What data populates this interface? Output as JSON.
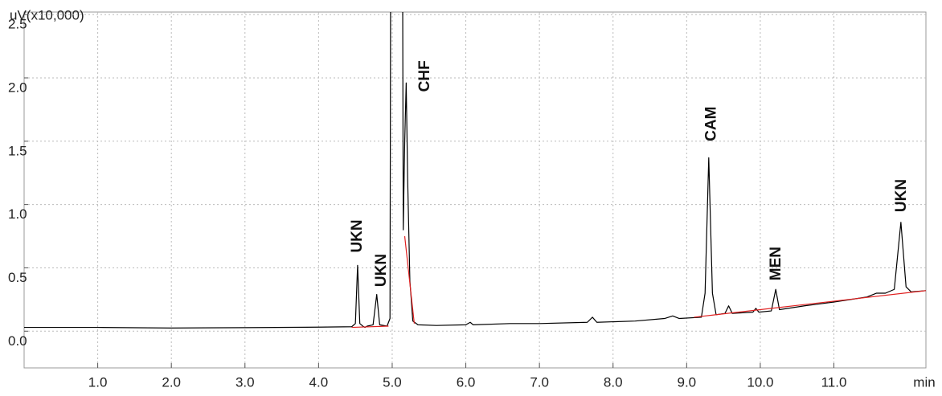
{
  "chart_data": {
    "type": "line",
    "y_label": "uV(x10,000)",
    "x_label": "min",
    "xlim": [
      0,
      12.25
    ],
    "ylim": [
      -0.29,
      2.52
    ],
    "xticks": [
      {
        "value": 1,
        "label": "1.0"
      },
      {
        "value": 2,
        "label": "2.0"
      },
      {
        "value": 3,
        "label": "3.0"
      },
      {
        "value": 4,
        "label": "4.0"
      },
      {
        "value": 5,
        "label": "5.0"
      },
      {
        "value": 6,
        "label": "6.0"
      },
      {
        "value": 7,
        "label": "7.0"
      },
      {
        "value": 8,
        "label": "8.0"
      },
      {
        "value": 9,
        "label": "9.0"
      },
      {
        "value": 10,
        "label": "10.0"
      },
      {
        "value": 11,
        "label": "11.0"
      }
    ],
    "yticks": [
      {
        "value": 0,
        "label": "0.0"
      },
      {
        "value": 0.5,
        "label": "0.5"
      },
      {
        "value": 1,
        "label": "1.0"
      },
      {
        "value": 1.5,
        "label": "1.5"
      },
      {
        "value": 2,
        "label": "2.0"
      },
      {
        "value": 2.5,
        "label": "2.5"
      }
    ],
    "grid": true,
    "series": [
      {
        "color": "#000000",
        "x": [
          0,
          1,
          2,
          3,
          4,
          4.45,
          4.5,
          4.53,
          4.56,
          4.6,
          4.63,
          4.66,
          4.74,
          4.79,
          4.83,
          4.93,
          4.97,
          4.98,
          5.14,
          5.15,
          5.17,
          5.19,
          5.21,
          5.24,
          5.28,
          5.35,
          5.6,
          6.0,
          6.06,
          6.1,
          6.6,
          7.0,
          7.65,
          7.72,
          7.78,
          8.3,
          8.7,
          8.81,
          8.9,
          9.2,
          9.25,
          9.3,
          9.35,
          9.4,
          9.52,
          9.57,
          9.62,
          9.9,
          9.94,
          9.98,
          10.15,
          10.21,
          10.26,
          10.6,
          11.0,
          11.45,
          11.58,
          11.7,
          11.82,
          11.91,
          11.98,
          12.05,
          12.25
        ],
        "values": [
          0.03,
          0.03,
          0.025,
          0.028,
          0.032,
          0.035,
          0.06,
          0.52,
          0.06,
          0.04,
          0.03,
          0.04,
          0.05,
          0.29,
          0.05,
          0.04,
          0.1,
          3.2,
          3.2,
          0.8,
          1.5,
          1.96,
          1.2,
          0.4,
          0.08,
          0.05,
          0.045,
          0.05,
          0.07,
          0.05,
          0.06,
          0.06,
          0.07,
          0.11,
          0.07,
          0.08,
          0.1,
          0.12,
          0.1,
          0.11,
          0.3,
          1.37,
          0.3,
          0.13,
          0.14,
          0.2,
          0.14,
          0.15,
          0.18,
          0.15,
          0.16,
          0.33,
          0.17,
          0.2,
          0.23,
          0.27,
          0.3,
          0.3,
          0.33,
          0.86,
          0.35,
          0.31,
          0.32
        ]
      },
      {
        "color": "#e02020",
        "x": [
          4.45,
          4.95
        ],
        "values": [
          0.03,
          0.04
        ]
      },
      {
        "color": "#e02020",
        "x": [
          5.17,
          5.3
        ],
        "values": [
          0.75,
          0.06
        ]
      },
      {
        "color": "#e02020",
        "x": [
          9.1,
          12.25
        ],
        "values": [
          0.11,
          0.32
        ]
      }
    ],
    "annotations": [
      {
        "text": "UKN",
        "x": 4.53,
        "y": 0.62
      },
      {
        "text": "UKN",
        "x": 4.86,
        "y": 0.35
      },
      {
        "text": "CHF",
        "x": 5.45,
        "y": 1.89
      },
      {
        "text": "CAM",
        "x": 9.34,
        "y": 1.5
      },
      {
        "text": "MEN",
        "x": 10.22,
        "y": 0.4
      },
      {
        "text": "UKN",
        "x": 11.92,
        "y": 0.94
      }
    ]
  }
}
